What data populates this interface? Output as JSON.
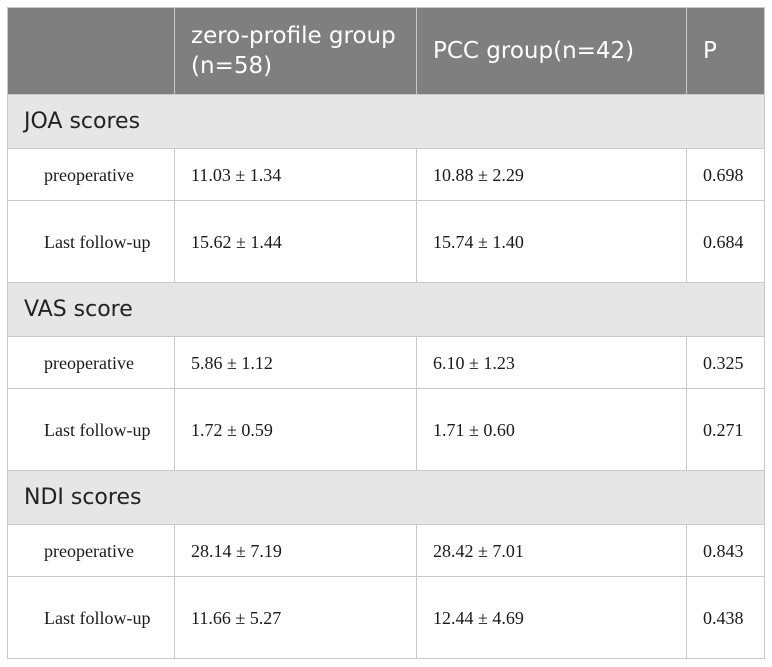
{
  "header": {
    "col_label": "",
    "col_zero": "zero-profile group (n=58)",
    "col_pcc": "PCC group(n=42)",
    "col_p": "P"
  },
  "groups": [
    {
      "title": "JOA scores",
      "rows": [
        {
          "label": "preoperative",
          "zero": "11.03 ± 1.34",
          "pcc": "10.88 ± 2.29",
          "p": "0.698"
        },
        {
          "label": "Last follow-up",
          "zero": "15.62 ± 1.44",
          "pcc": "15.74 ± 1.40",
          "p": "0.684"
        }
      ]
    },
    {
      "title": "VAS score",
      "rows": [
        {
          "label": "preoperative",
          "zero": "5.86 ± 1.12",
          "pcc": "6.10 ± 1.23",
          "p": "0.325"
        },
        {
          "label": "Last follow-up",
          "zero": "1.72 ± 0.59",
          "pcc": "1.71 ± 0.60",
          "p": "0.271"
        }
      ]
    },
    {
      "title": "NDI scores",
      "rows": [
        {
          "label": "preoperative",
          "zero": "28.14 ± 7.19",
          "pcc": "28.42 ± 7.01",
          "p": "0.843"
        },
        {
          "label": "Last follow-up",
          "zero": "11.66 ± 5.27",
          "pcc": "12.44 ± 4.69",
          "p": "0.438"
        }
      ]
    }
  ]
}
